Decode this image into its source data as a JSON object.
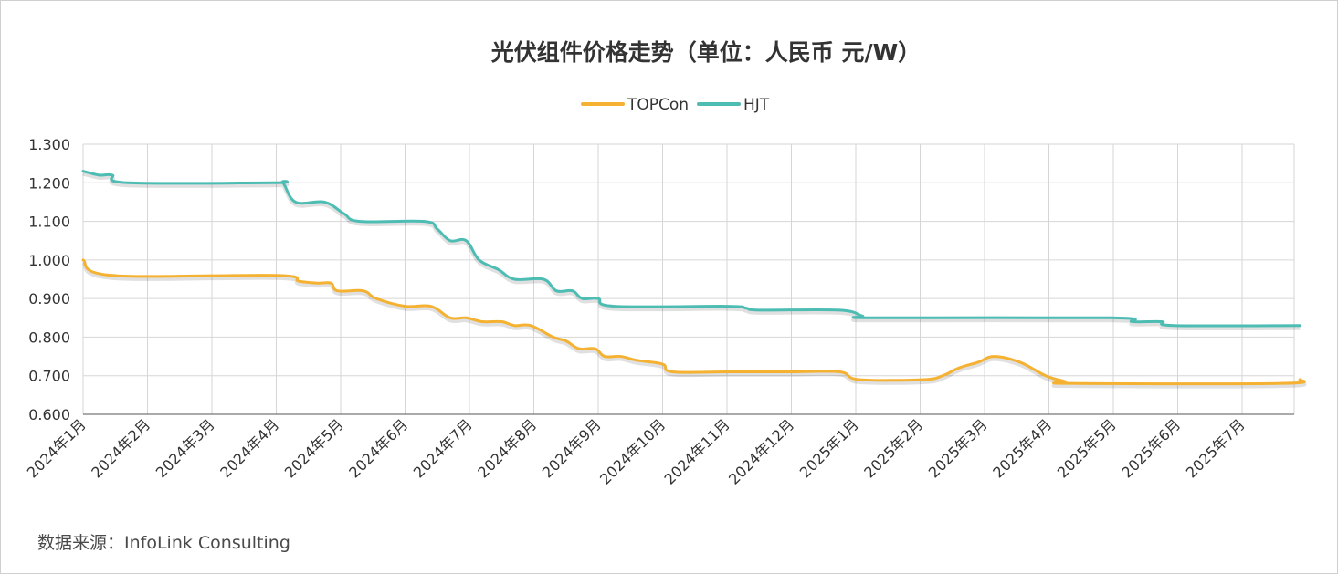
{
  "source_note": "数据来源：InfoLink Consulting",
  "colors": {
    "topcon": "#f5b232",
    "hjt": "#4dbdb4",
    "grid": "#d6d6d6",
    "axis": "#555555"
  },
  "chart_data": {
    "type": "line",
    "title": "光伏组件价格走势（单位：人民币 元/W）",
    "xlabel": "",
    "ylabel": "",
    "ylim": [
      0.6,
      1.3
    ],
    "yticks": [
      "1.300",
      "1.200",
      "1.100",
      "1.000",
      "0.900",
      "0.800",
      "0.700",
      "0.600"
    ],
    "grid": true,
    "legend_position": "top-center",
    "categories": [
      "2024年1月",
      "2024年2月",
      "2024年3月",
      "2024年4月",
      "2024年5月",
      "2024年6月",
      "2024年7月",
      "2024年8月",
      "2024年9月",
      "2024年10月",
      "2024年11月",
      "2024年12月",
      "2025年1月",
      "2025年2月",
      "2025年3月",
      "2025年4月",
      "2025年5月",
      "2025年6月",
      "2025年7月"
    ],
    "series": [
      {
        "name": "TOPCon",
        "points": [
          [
            0,
            1.0
          ],
          [
            0.45,
            0.96
          ],
          [
            3.0,
            0.96
          ],
          [
            3.35,
            0.945
          ],
          [
            3.65,
            0.94
          ],
          [
            3.85,
            0.94
          ],
          [
            3.95,
            0.92
          ],
          [
            4.35,
            0.92
          ],
          [
            4.55,
            0.9
          ],
          [
            5.0,
            0.88
          ],
          [
            5.4,
            0.88
          ],
          [
            5.7,
            0.85
          ],
          [
            5.95,
            0.85
          ],
          [
            6.2,
            0.84
          ],
          [
            6.5,
            0.84
          ],
          [
            6.7,
            0.83
          ],
          [
            6.95,
            0.83
          ],
          [
            7.3,
            0.8
          ],
          [
            7.5,
            0.79
          ],
          [
            7.7,
            0.77
          ],
          [
            7.95,
            0.77
          ],
          [
            8.1,
            0.75
          ],
          [
            8.35,
            0.75
          ],
          [
            8.6,
            0.74
          ],
          [
            9.0,
            0.73
          ],
          [
            9.15,
            0.71
          ],
          [
            10.0,
            0.71
          ],
          [
            11.0,
            0.71
          ],
          [
            11.75,
            0.71
          ],
          [
            12.05,
            0.69
          ],
          [
            13.05,
            0.69
          ],
          [
            13.35,
            0.7
          ],
          [
            13.6,
            0.72
          ],
          [
            13.9,
            0.735
          ],
          [
            14.15,
            0.75
          ],
          [
            14.55,
            0.735
          ],
          [
            14.95,
            0.7
          ],
          [
            15.25,
            0.685
          ],
          [
            15.35,
            0.68
          ],
          [
            18.6,
            0.68
          ],
          [
            18.9,
            0.69
          ]
        ]
      },
      {
        "name": "HJT",
        "points": [
          [
            0,
            1.23
          ],
          [
            0.25,
            1.22
          ],
          [
            0.45,
            1.22
          ],
          [
            0.7,
            1.2
          ],
          [
            2.95,
            1.2
          ],
          [
            3.1,
            1.2
          ],
          [
            3.3,
            1.15
          ],
          [
            3.75,
            1.15
          ],
          [
            4.05,
            1.12
          ],
          [
            4.3,
            1.1
          ],
          [
            5.3,
            1.1
          ],
          [
            5.5,
            1.08
          ],
          [
            5.7,
            1.05
          ],
          [
            5.95,
            1.05
          ],
          [
            6.15,
            1.0
          ],
          [
            6.45,
            0.975
          ],
          [
            6.7,
            0.95
          ],
          [
            7.15,
            0.95
          ],
          [
            7.35,
            0.92
          ],
          [
            7.6,
            0.92
          ],
          [
            7.75,
            0.9
          ],
          [
            8.0,
            0.9
          ],
          [
            8.25,
            0.88
          ],
          [
            10.0,
            0.88
          ],
          [
            10.3,
            0.875
          ],
          [
            10.5,
            0.87
          ],
          [
            11.75,
            0.87
          ],
          [
            12.1,
            0.855
          ],
          [
            12.3,
            0.85
          ],
          [
            15.95,
            0.85
          ],
          [
            16.3,
            0.84
          ],
          [
            16.75,
            0.84
          ],
          [
            16.95,
            0.83
          ],
          [
            18.9,
            0.83
          ]
        ]
      }
    ]
  }
}
